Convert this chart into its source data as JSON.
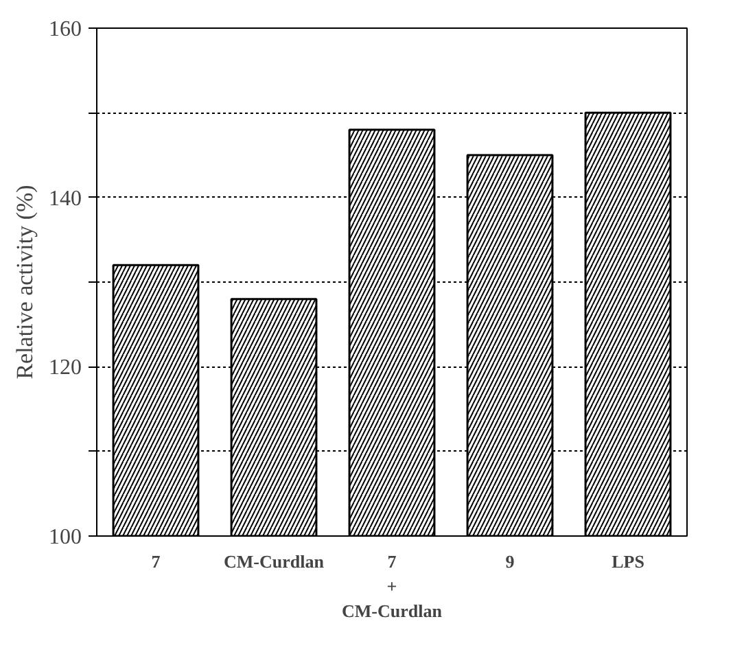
{
  "chart_data": {
    "type": "bar",
    "ylabel": "Relative activity (%)",
    "categories": [
      "7",
      "CM-Curdlan",
      "7\n+\nCM-Curdlan",
      "9",
      "LPS"
    ],
    "values": [
      132,
      128,
      148,
      145,
      150
    ],
    "color": "#000000",
    "ylim": [
      100,
      160
    ],
    "yticks": [
      100,
      {
        "value": 110,
        "label": null
      },
      120,
      {
        "value": 130,
        "label": null
      },
      140,
      {
        "value": 150,
        "label": null
      },
      160
    ],
    "grid": "y"
  }
}
